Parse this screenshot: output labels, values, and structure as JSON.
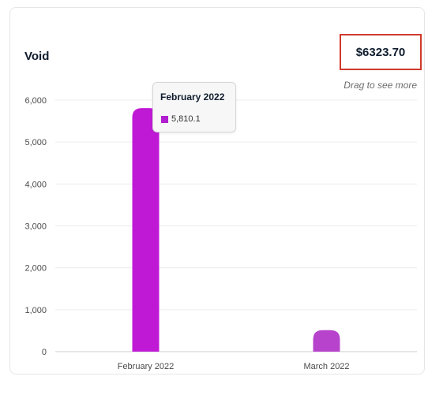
{
  "card": {
    "title": "Void",
    "total": "$6323.70",
    "hint": "Drag to see more"
  },
  "tooltip": {
    "title": "February 2022",
    "value": "5,810.1",
    "color": "#b21fd0"
  },
  "chart_data": {
    "type": "bar",
    "categories": [
      "February 2022",
      "March 2022"
    ],
    "values": [
      5810.1,
      513.6
    ],
    "ylim": [
      0,
      6000
    ],
    "yticks": [
      0,
      1000,
      2000,
      3000,
      4000,
      5000,
      6000
    ],
    "ytick_labels": [
      "0",
      "1,000",
      "2,000",
      "3,000",
      "4,000",
      "5,000",
      "6,000"
    ],
    "grid": true,
    "colors": [
      "#c019d6",
      "#b743cc"
    ]
  }
}
